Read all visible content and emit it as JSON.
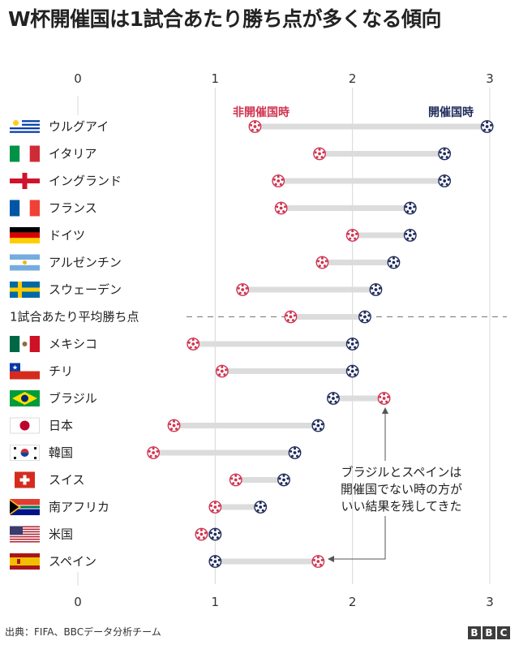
{
  "title": "W杯開催国は1試合あたり勝ち点が多くなる傾向",
  "footer": "出典：FIFA、BBCデータ分析チーム",
  "logo": [
    "B",
    "B",
    "C"
  ],
  "colors": {
    "non_host": "#d0334f",
    "host": "#1e2a5a",
    "bar": "#dcdcdc",
    "grid": "#d8d8d8",
    "text": "#222222"
  },
  "chart_data": {
    "type": "dumbbell",
    "title": "W杯開催国は1試合あたり勝ち点が多くなる傾向",
    "xlim": [
      0,
      3
    ],
    "x_ticks": [
      "0",
      "1",
      "2",
      "3"
    ],
    "grid": true,
    "legend": {
      "non_host": "非開催国時",
      "host": "開催国時"
    },
    "rows": [
      {
        "label": "ウルグアイ",
        "flag": "uruguay",
        "non_host": 1.29,
        "host": 2.98
      },
      {
        "label": "イタリア",
        "flag": "italy",
        "non_host": 1.76,
        "host": 2.67
      },
      {
        "label": "イングランド",
        "flag": "england",
        "non_host": 1.46,
        "host": 2.67
      },
      {
        "label": "フランス",
        "flag": "france",
        "non_host": 1.48,
        "host": 2.42
      },
      {
        "label": "ドイツ",
        "flag": "germany",
        "non_host": 2.0,
        "host": 2.42
      },
      {
        "label": "アルゼンチン",
        "flag": "argentina",
        "non_host": 1.78,
        "host": 2.3
      },
      {
        "label": "スウェーデン",
        "flag": "sweden",
        "non_host": 1.2,
        "host": 2.17
      },
      {
        "label": "1試合あたり平均勝ち点",
        "flag": null,
        "average": true,
        "non_host": 1.55,
        "host": 2.09
      },
      {
        "label": "メキシコ",
        "flag": "mexico",
        "non_host": 0.84,
        "host": 2.0
      },
      {
        "label": "チリ",
        "flag": "chile",
        "non_host": 1.05,
        "host": 2.0
      },
      {
        "label": "ブラジル",
        "flag": "brazil",
        "non_host": 2.23,
        "host": 1.86
      },
      {
        "label": "日本",
        "flag": "japan",
        "non_host": 0.7,
        "host": 1.75
      },
      {
        "label": "韓国",
        "flag": "korea",
        "non_host": 0.55,
        "host": 1.58
      },
      {
        "label": "スイス",
        "flag": "switzerland",
        "non_host": 1.15,
        "host": 1.5
      },
      {
        "label": "南アフリカ",
        "flag": "south-africa",
        "non_host": 1.0,
        "host": 1.33
      },
      {
        "label": "米国",
        "flag": "usa",
        "non_host": 0.9,
        "host": 1.0
      },
      {
        "label": "スペイン",
        "flag": "spain",
        "non_host": 1.75,
        "host": 1.0
      }
    ],
    "annotation": {
      "lines": [
        "ブラジルとスペインは",
        "開催国でない時の方が",
        "いい結果を残してきた"
      ],
      "targets": [
        "ブラジル",
        "スペイン"
      ]
    }
  }
}
